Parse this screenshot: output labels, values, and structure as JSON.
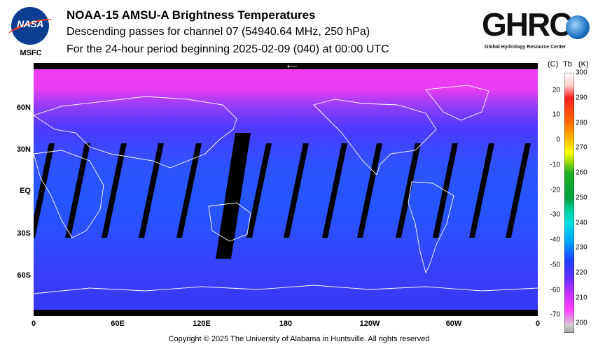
{
  "header": {
    "title": "NOAA-15 AMSU-A Brightness Temperatures",
    "subtitle": "Descending passes for channel 07 (54940.64 MHz, 250 hPa)",
    "period": "For the 24-hour period beginning 2025-02-09 (040) at 00:00 UTC"
  },
  "logos": {
    "nasa": "NASA",
    "msfc": "MSFC",
    "ghrc": "GHRC",
    "ghrc_full": "Global Hydrology Resource Center"
  },
  "map": {
    "lat_labels": [
      "60N",
      "30N",
      "EQ",
      "30S",
      "60S"
    ],
    "lat_values": [
      60,
      30,
      0,
      -30,
      -60
    ],
    "lon_labels": [
      "0",
      "60E",
      "120E",
      "180",
      "120W",
      "60W",
      "0"
    ],
    "lon_values": [
      0,
      60,
      120,
      180,
      240,
      300,
      360
    ],
    "projection": "equirectangular",
    "lat_range": [
      -90,
      90
    ],
    "lon_range": [
      0,
      360
    ],
    "colors": {
      "polar_north": "#e83cf0",
      "mid": "#4438ff",
      "tropics": "#2255ff",
      "south": "#3a3cf8",
      "swath_gap": "#000000",
      "coastline": "#ffffff"
    }
  },
  "colorbar": {
    "header_c": "(C)",
    "header_tb": "Tb",
    "header_k": "(K)",
    "celsius_ticks": [
      "20",
      "10",
      "0",
      "-10",
      "-20",
      "-30",
      "-40",
      "-50",
      "-60",
      "-70"
    ],
    "celsius_values": [
      20,
      10,
      0,
      -10,
      -20,
      -30,
      -40,
      -50,
      -60,
      -70
    ],
    "kelvin_ticks": [
      "300",
      "290",
      "280",
      "270",
      "260",
      "250",
      "240",
      "230",
      "220",
      "210",
      "200"
    ],
    "kelvin_values": [
      300,
      290,
      280,
      270,
      260,
      250,
      240,
      230,
      220,
      210,
      200
    ],
    "range_k": [
      196,
      300
    ]
  },
  "footer": {
    "copyright": "Copyright © 2025 The University of Alabama in Huntsville.  All rights reserved"
  }
}
